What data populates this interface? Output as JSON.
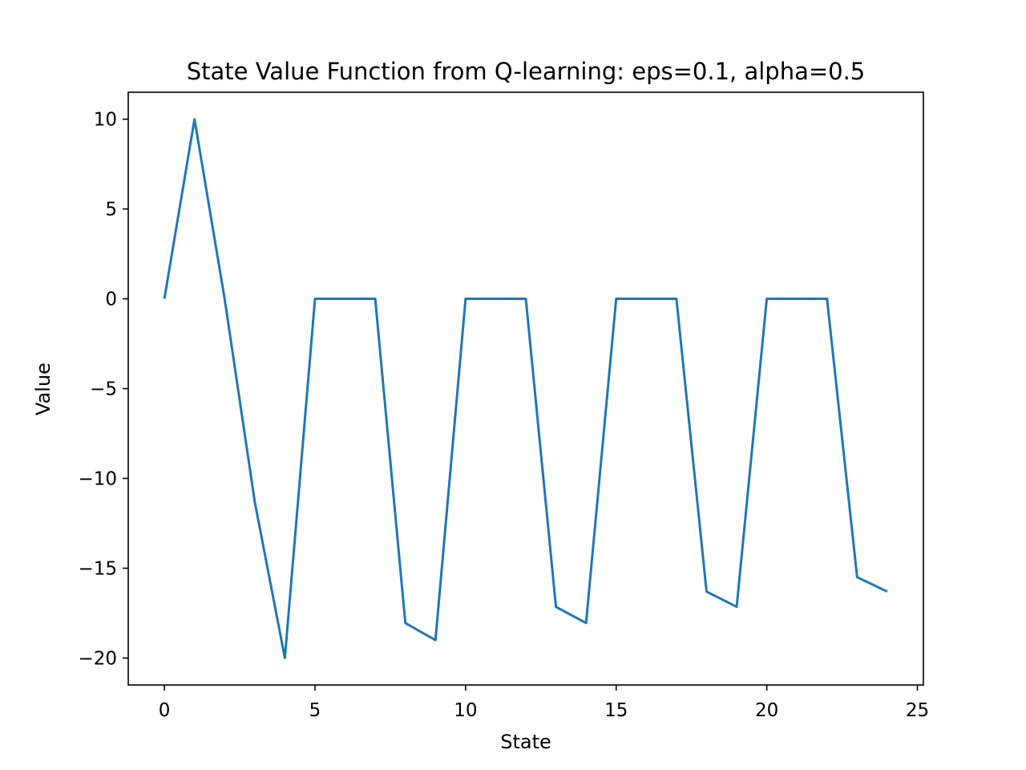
{
  "chart_data": {
    "type": "line",
    "title": "State Value Function from Q-learning: eps=0.1, alpha=0.5",
    "xlabel": "State",
    "ylabel": "Value",
    "xlim": [
      -1.2,
      25.2
    ],
    "ylim": [
      -21.5,
      11.5
    ],
    "xticks": [
      0,
      5,
      10,
      15,
      20,
      25
    ],
    "yticks": [
      10,
      5,
      0,
      -5,
      -10,
      -15,
      -20
    ],
    "ytick_labels": [
      "10",
      "5",
      "0",
      "−5",
      "−10",
      "−15",
      "−20"
    ],
    "grid": false,
    "series": [
      {
        "color": "#1f77b4",
        "x": [
          0,
          1,
          2,
          3,
          4,
          5,
          6,
          7,
          8,
          9,
          10,
          11,
          12,
          13,
          14,
          15,
          16,
          17,
          18,
          19,
          20,
          21,
          22,
          23,
          24
        ],
        "values": [
          0,
          10,
          0,
          -11.3,
          -20,
          0,
          0,
          0,
          -18.05,
          -19,
          0,
          0,
          0,
          -17.15,
          -18.05,
          0,
          0,
          0,
          -16.3,
          -17.15,
          0,
          0,
          0,
          -15.5,
          -16.3
        ]
      }
    ]
  }
}
